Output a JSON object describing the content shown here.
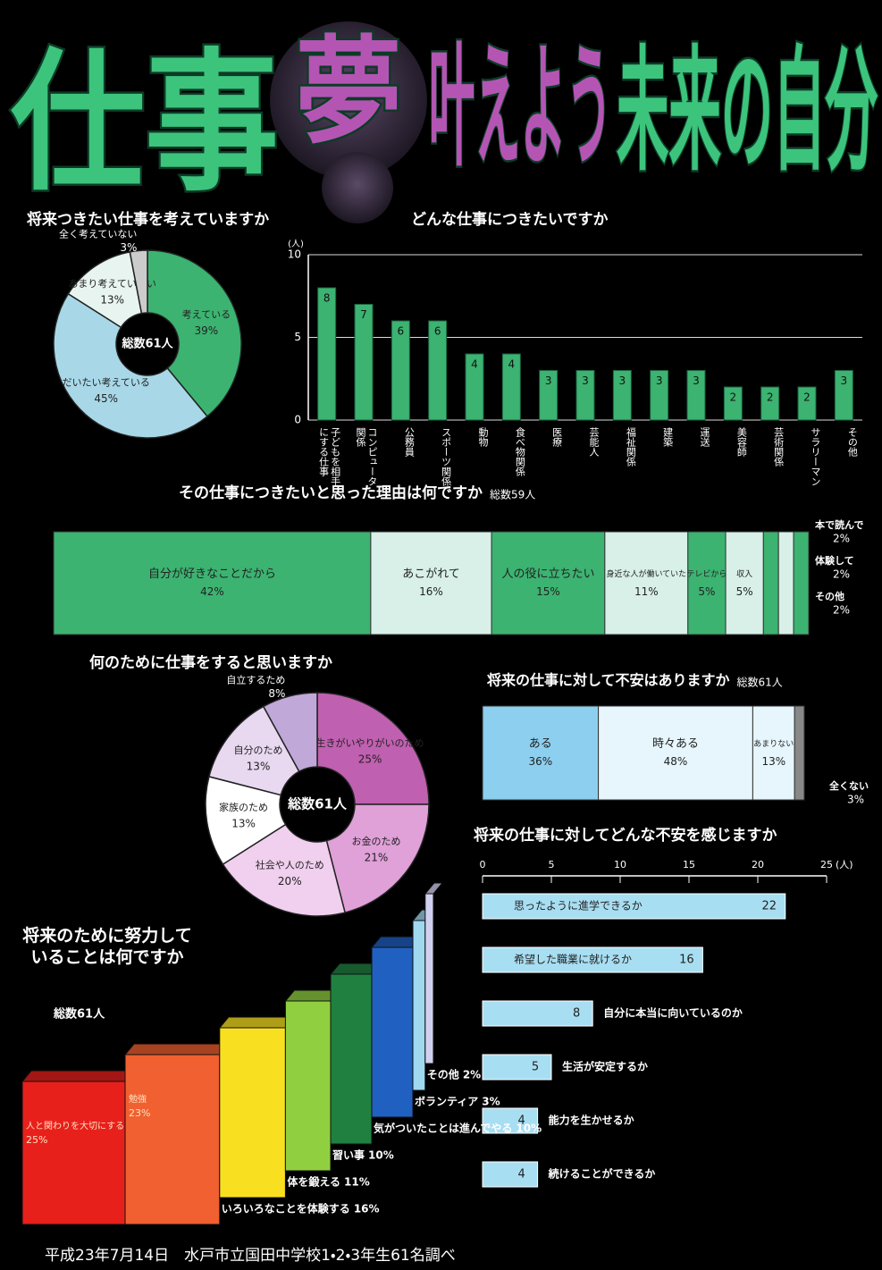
{
  "title": [
    {
      "text": "仕事",
      "color": "#3cc47c"
    },
    {
      "text": "夢",
      "color": "#b455b4"
    },
    {
      "text": "叶えよう",
      "color": "#b455b4"
    },
    {
      "text": "未来の自分",
      "color": "#3cc47c"
    }
  ],
  "footer": "平成23年7月14日　水戸市立国田中学校1・2・3年生61名調べ",
  "chart_data": [
    {
      "type": "donut",
      "title": "将来つきたい仕事を考えていますか",
      "center_label": "総数61人",
      "categories": [
        "考えている",
        "だいたい考えている",
        "あまり考えていない",
        "全く考えていない"
      ],
      "values": [
        39,
        45,
        13,
        3
      ],
      "value_labels": [
        "39%",
        "45%",
        "13%",
        "3%"
      ],
      "colors": [
        "#3cb371",
        "#a8d8e8",
        "#e8f4f0",
        "#cccccc"
      ]
    },
    {
      "type": "bar",
      "title": "どんな仕事につきたいですか",
      "y_label": "(人)",
      "categories": [
        "子どもを相手にする仕事",
        "コンピュータ関係",
        "公務員",
        "スポーツ関係",
        "動物",
        "食べ物関係",
        "医療",
        "芸能人",
        "福祉関係",
        "建築",
        "運送",
        "美容師",
        "芸術関係",
        "サラリーマン",
        "その他"
      ],
      "values": [
        8,
        7,
        6,
        6,
        4,
        4,
        3,
        3,
        3,
        3,
        3,
        2,
        2,
        2,
        3
      ],
      "color": "#3cb371",
      "ylim": [
        0,
        10
      ],
      "yticks": [
        0,
        5,
        10
      ],
      "grid": true
    },
    {
      "type": "stacked_bar",
      "title": "その仕事につきたいと思った理由は何ですか",
      "note": "総数59人",
      "categories": [
        "自分が好きなことだから",
        "あこがれて",
        "人の役に立ちたい",
        "身近な人が働いていた",
        "テレビから",
        "収入",
        "本で読んで",
        "体験して",
        "その他"
      ],
      "values": [
        42,
        16,
        15,
        11,
        5,
        5,
        2,
        2,
        2
      ],
      "value_labels": [
        "42%",
        "16%",
        "15%",
        "11%",
        "5%",
        "5%",
        "2%",
        "2%",
        "2%"
      ],
      "colors": [
        "#3cb371",
        "#d8f0e8",
        "#3cb371",
        "#d8f0e8",
        "#3cb371",
        "#d8f0e8",
        "#3cb371",
        "#d8f0e8",
        "#3cb371"
      ]
    },
    {
      "type": "donut",
      "title": "何のために仕事をすると思いますか",
      "center_label": "総数61人",
      "categories": [
        "生きがいやりがいのため",
        "お金のため",
        "社会や人のため",
        "家族のため",
        "自分のため",
        "自立するため"
      ],
      "values": [
        25,
        21,
        20,
        13,
        13,
        8
      ],
      "value_labels": [
        "25%",
        "21%",
        "20%",
        "13%",
        "13%",
        "8%"
      ],
      "colors": [
        "#c060b0",
        "#e0a0d8",
        "#f0d0ee",
        "#ffffff",
        "#e8d8f0",
        "#c0a8d8"
      ]
    },
    {
      "type": "stacked_bar",
      "title": "将来の仕事に対して不安はありますか",
      "note": "総数61人",
      "categories": [
        "ある",
        "時々ある",
        "あまりない",
        "全くない"
      ],
      "values": [
        36,
        48,
        13,
        3
      ],
      "value_labels": [
        "36%",
        "48%",
        "13%",
        "3%"
      ],
      "colors": [
        "#8ccfee",
        "#e6f6fc",
        "#e6f6fc",
        "#888888"
      ]
    },
    {
      "type": "hbar",
      "title": "将来の仕事に対してどんな不安を感じますか",
      "x_label": "(人)",
      "categories": [
        "思ったように進学できるか",
        "希望した職業に就けるか",
        "自分に本当に向いているのか",
        "生活が安定するか",
        "能力を生かせるか",
        "続けることができるか"
      ],
      "values": [
        22,
        16,
        8,
        5,
        4,
        4
      ],
      "color": "#a8def2",
      "xlim": [
        0,
        25
      ],
      "xticks": [
        0,
        5,
        10,
        15,
        20,
        25
      ]
    },
    {
      "type": "step_bar",
      "title": "将来のために努力していることは何ですか",
      "note": "総数61人",
      "categories": [
        "人と関わりを大切にする",
        "勉強",
        "いろいろなことを体験する",
        "体を鍛える",
        "習い事",
        "気がついたことは進んでやる",
        "ボランティア",
        "その他"
      ],
      "values": [
        25,
        23,
        16,
        11,
        10,
        10,
        3,
        2
      ],
      "value_labels": [
        "25%",
        "23%",
        "16%",
        "11%",
        "10%",
        "10%",
        "3%",
        "2%"
      ],
      "colors": [
        "#e8201c",
        "#f06030",
        "#f8e020",
        "#90d040",
        "#208040",
        "#2060c0",
        "#a0d8f0",
        "#d0d0f0"
      ]
    }
  ]
}
